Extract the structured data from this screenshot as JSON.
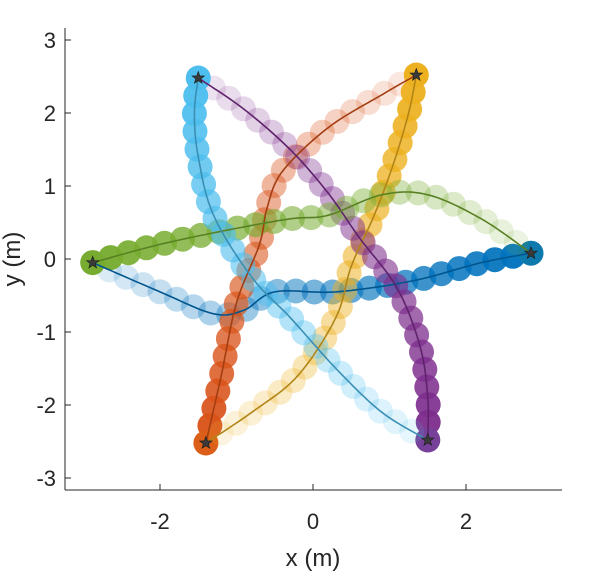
{
  "chart_data": {
    "type": "scatter",
    "xlabel": "x (m)",
    "ylabel": "y (m)",
    "xlim": [
      -3.2,
      3.2
    ],
    "ylim": [
      -3.2,
      3.2
    ],
    "x_ticks": [
      -2,
      0,
      2
    ],
    "x_tick_labels": [
      "-2",
      "0",
      "2"
    ],
    "y_ticks": [
      3,
      2,
      1,
      0,
      -1,
      -2,
      -3
    ],
    "y_tick_labels": [
      "3",
      "2",
      "1",
      "0",
      "-1",
      "-2",
      "-3"
    ],
    "grid": false,
    "legend": "none",
    "markers": "star at trajectory endpoints",
    "series": [
      {
        "color": "#0072BD",
        "start": [
          -2.88,
          -0.05
        ],
        "end": [
          2.85,
          0.08
        ],
        "reference_path": [
          [
            -2.88,
            -0.05
          ],
          [
            -2.0,
            -0.45
          ],
          [
            -1.3,
            -0.75
          ],
          [
            -0.9,
            -0.7
          ],
          [
            -0.5,
            -0.45
          ],
          [
            0.3,
            -0.45
          ],
          [
            1.3,
            -0.3
          ],
          [
            2.2,
            -0.05
          ],
          [
            2.85,
            0.08
          ]
        ]
      },
      {
        "color": "#D95319",
        "start": [
          1.35,
          2.52
        ],
        "end": [
          -1.4,
          -2.52
        ],
        "reference_path": [
          [
            1.35,
            2.52
          ],
          [
            0.9,
            2.25
          ],
          [
            0.2,
            1.8
          ],
          [
            -0.4,
            1.2
          ],
          [
            -0.6,
            0.7
          ],
          [
            -0.7,
            0.2
          ],
          [
            -1.0,
            -0.6
          ],
          [
            -1.2,
            -1.6
          ],
          [
            -1.4,
            -2.52
          ]
        ]
      },
      {
        "color": "#EDB120",
        "start": [
          -1.4,
          -2.52
        ],
        "end": [
          1.35,
          2.52
        ],
        "reference_path": [
          [
            -1.4,
            -2.52
          ],
          [
            -0.8,
            -2.1
          ],
          [
            -0.2,
            -1.6
          ],
          [
            0.3,
            -0.8
          ],
          [
            0.5,
            -0.1
          ],
          [
            0.8,
            0.6
          ],
          [
            1.05,
            1.3
          ],
          [
            1.25,
            2.0
          ],
          [
            1.35,
            2.52
          ]
        ]
      },
      {
        "color": "#7E2F8E",
        "start": [
          -1.5,
          2.48
        ],
        "end": [
          1.5,
          -2.48
        ],
        "reference_path": [
          [
            -1.5,
            2.48
          ],
          [
            -0.9,
            2.05
          ],
          [
            -0.3,
            1.5
          ],
          [
            0.2,
            0.9
          ],
          [
            0.6,
            0.3
          ],
          [
            1.1,
            -0.4
          ],
          [
            1.4,
            -1.2
          ],
          [
            1.5,
            -1.9
          ],
          [
            1.5,
            -2.48
          ]
        ]
      },
      {
        "color": "#77AC30",
        "start": [
          2.85,
          0.08
        ],
        "end": [
          -2.88,
          -0.05
        ],
        "reference_path": [
          [
            2.85,
            0.08
          ],
          [
            2.2,
            0.55
          ],
          [
            1.5,
            0.88
          ],
          [
            0.9,
            0.88
          ],
          [
            0.2,
            0.6
          ],
          [
            -0.3,
            0.55
          ],
          [
            -1.1,
            0.4
          ],
          [
            -2.0,
            0.2
          ],
          [
            -2.88,
            -0.05
          ]
        ]
      },
      {
        "color": "#4DBEEE",
        "start": [
          1.5,
          -2.48
        ],
        "end": [
          -1.5,
          2.48
        ],
        "reference_path": [
          [
            1.5,
            -2.48
          ],
          [
            0.9,
            -2.1
          ],
          [
            0.3,
            -1.5
          ],
          [
            -0.3,
            -0.8
          ],
          [
            -0.8,
            -0.25
          ],
          [
            -1.3,
            0.6
          ],
          [
            -1.5,
            1.4
          ],
          [
            -1.55,
            2.0
          ],
          [
            -1.5,
            2.48
          ]
        ]
      }
    ]
  }
}
